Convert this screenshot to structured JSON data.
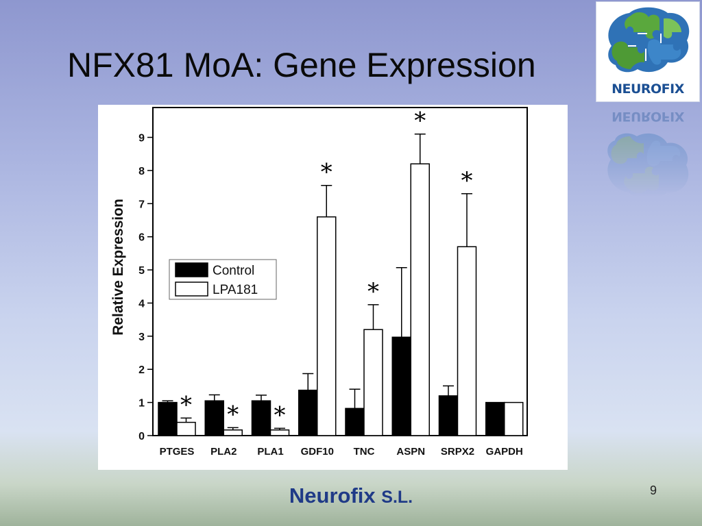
{
  "slide": {
    "title": "NFX81 MoA: Gene Expression",
    "page_number": "9",
    "footer_company": "Neurofix",
    "footer_suffix": "S.L."
  },
  "logo": {
    "text": "NEUROFIX",
    "text_reflected": "NEUROFIX",
    "icon": "puzzle-brain-icon",
    "colors": {
      "blue": "#2f72b6",
      "green": "#5aa83d",
      "dark_blue": "#1b4f93"
    }
  },
  "chart_data": {
    "type": "bar",
    "title": "",
    "xlabel": "",
    "ylabel": "Relative Expression",
    "ylim": [
      0,
      9.9
    ],
    "yticks": [
      0,
      1,
      2,
      3,
      4,
      5,
      6,
      7,
      8,
      9
    ],
    "categories": [
      "PTGES",
      "PLA2",
      "PLA1",
      "GDF10",
      "TNC",
      "ASPN",
      "SRPX2",
      "GAPDH"
    ],
    "series": [
      {
        "name": "Control",
        "fill": "#000000",
        "values": [
          1.0,
          1.05,
          1.05,
          1.37,
          0.82,
          2.97,
          1.2,
          1.0
        ],
        "errors": [
          0.05,
          0.18,
          0.17,
          0.5,
          0.58,
          2.1,
          0.3,
          0
        ]
      },
      {
        "name": "LPA181",
        "fill": "#ffffff",
        "values": [
          0.4,
          0.17,
          0.17,
          6.6,
          3.2,
          8.2,
          5.7,
          1.0
        ],
        "errors": [
          0.13,
          0.07,
          0.05,
          0.95,
          0.75,
          0.9,
          1.6,
          0
        ],
        "significant": [
          true,
          true,
          true,
          true,
          true,
          true,
          true,
          false
        ]
      }
    ],
    "significance_marker": "*",
    "legend_position": "left-middle",
    "grid": false
  }
}
